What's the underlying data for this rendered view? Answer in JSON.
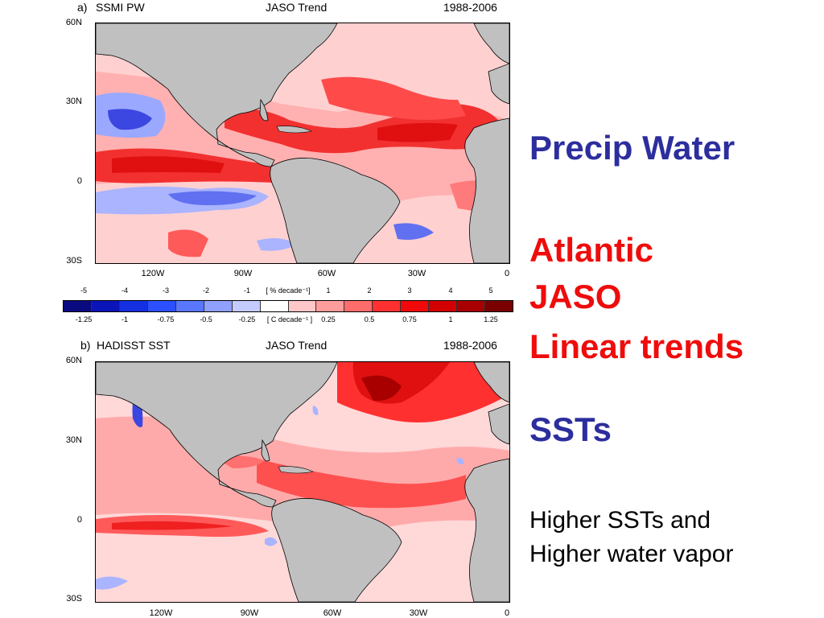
{
  "panel_a": {
    "label": "a)",
    "title_left": "SSMI PW",
    "title_center": "JASO Trend",
    "title_right": "1988-2006",
    "lat_labels": [
      "60N",
      "30N",
      "0",
      "30S"
    ],
    "lon_labels": [
      "120W",
      "90W",
      "60W",
      "30W",
      "0"
    ]
  },
  "panel_b": {
    "label": "b)",
    "title_left": "HADISST SST",
    "title_center": "JASO Trend",
    "title_right": "1988-2006",
    "lat_labels": [
      "60N",
      "30N",
      "0",
      "30S"
    ],
    "lon_labels": [
      "120W",
      "90W",
      "60W",
      "30W",
      "0"
    ]
  },
  "colorbar": {
    "top_ticks": [
      "-5",
      "-4",
      "-3",
      "-2",
      "-1",
      "[ % decade⁻¹]",
      "1",
      "2",
      "3",
      "4",
      "5"
    ],
    "bottom_ticks": [
      "-1.25",
      "-1",
      "-0.75",
      "-0.5",
      "-0.25",
      "[ C  decade⁻¹ ]",
      "0.25",
      "0.5",
      "0.75",
      "1",
      "1.25"
    ],
    "colors": [
      "#0a0a80",
      "#0a14b8",
      "#1430e0",
      "#2c50ff",
      "#5a78ff",
      "#8fa0ff",
      "#c4ccff",
      "#ffffff",
      "#ffc8c8",
      "#ff9c9c",
      "#ff6c6c",
      "#ff3030",
      "#f00a0a",
      "#d20000",
      "#a80000",
      "#7a0000"
    ]
  },
  "side_text": {
    "heading1": "Precip Water",
    "heading2_line1": "Atlantic",
    "heading2_line2": "JASO",
    "heading2_line3": "Linear trends",
    "heading3": "SSTs",
    "body_line1": "Higher SSTs and",
    "body_line2": "Higher water vapor"
  },
  "palette": {
    "land": "#c0c0c0",
    "deep_red": "#e8141c",
    "mid_red": "#ff7070",
    "light_red": "#ffc4c4",
    "blue": "#3c46e0",
    "light_blue": "#aab4ff",
    "accent_blue": "#2c2e9e",
    "accent_red": "#ef0c0c"
  }
}
